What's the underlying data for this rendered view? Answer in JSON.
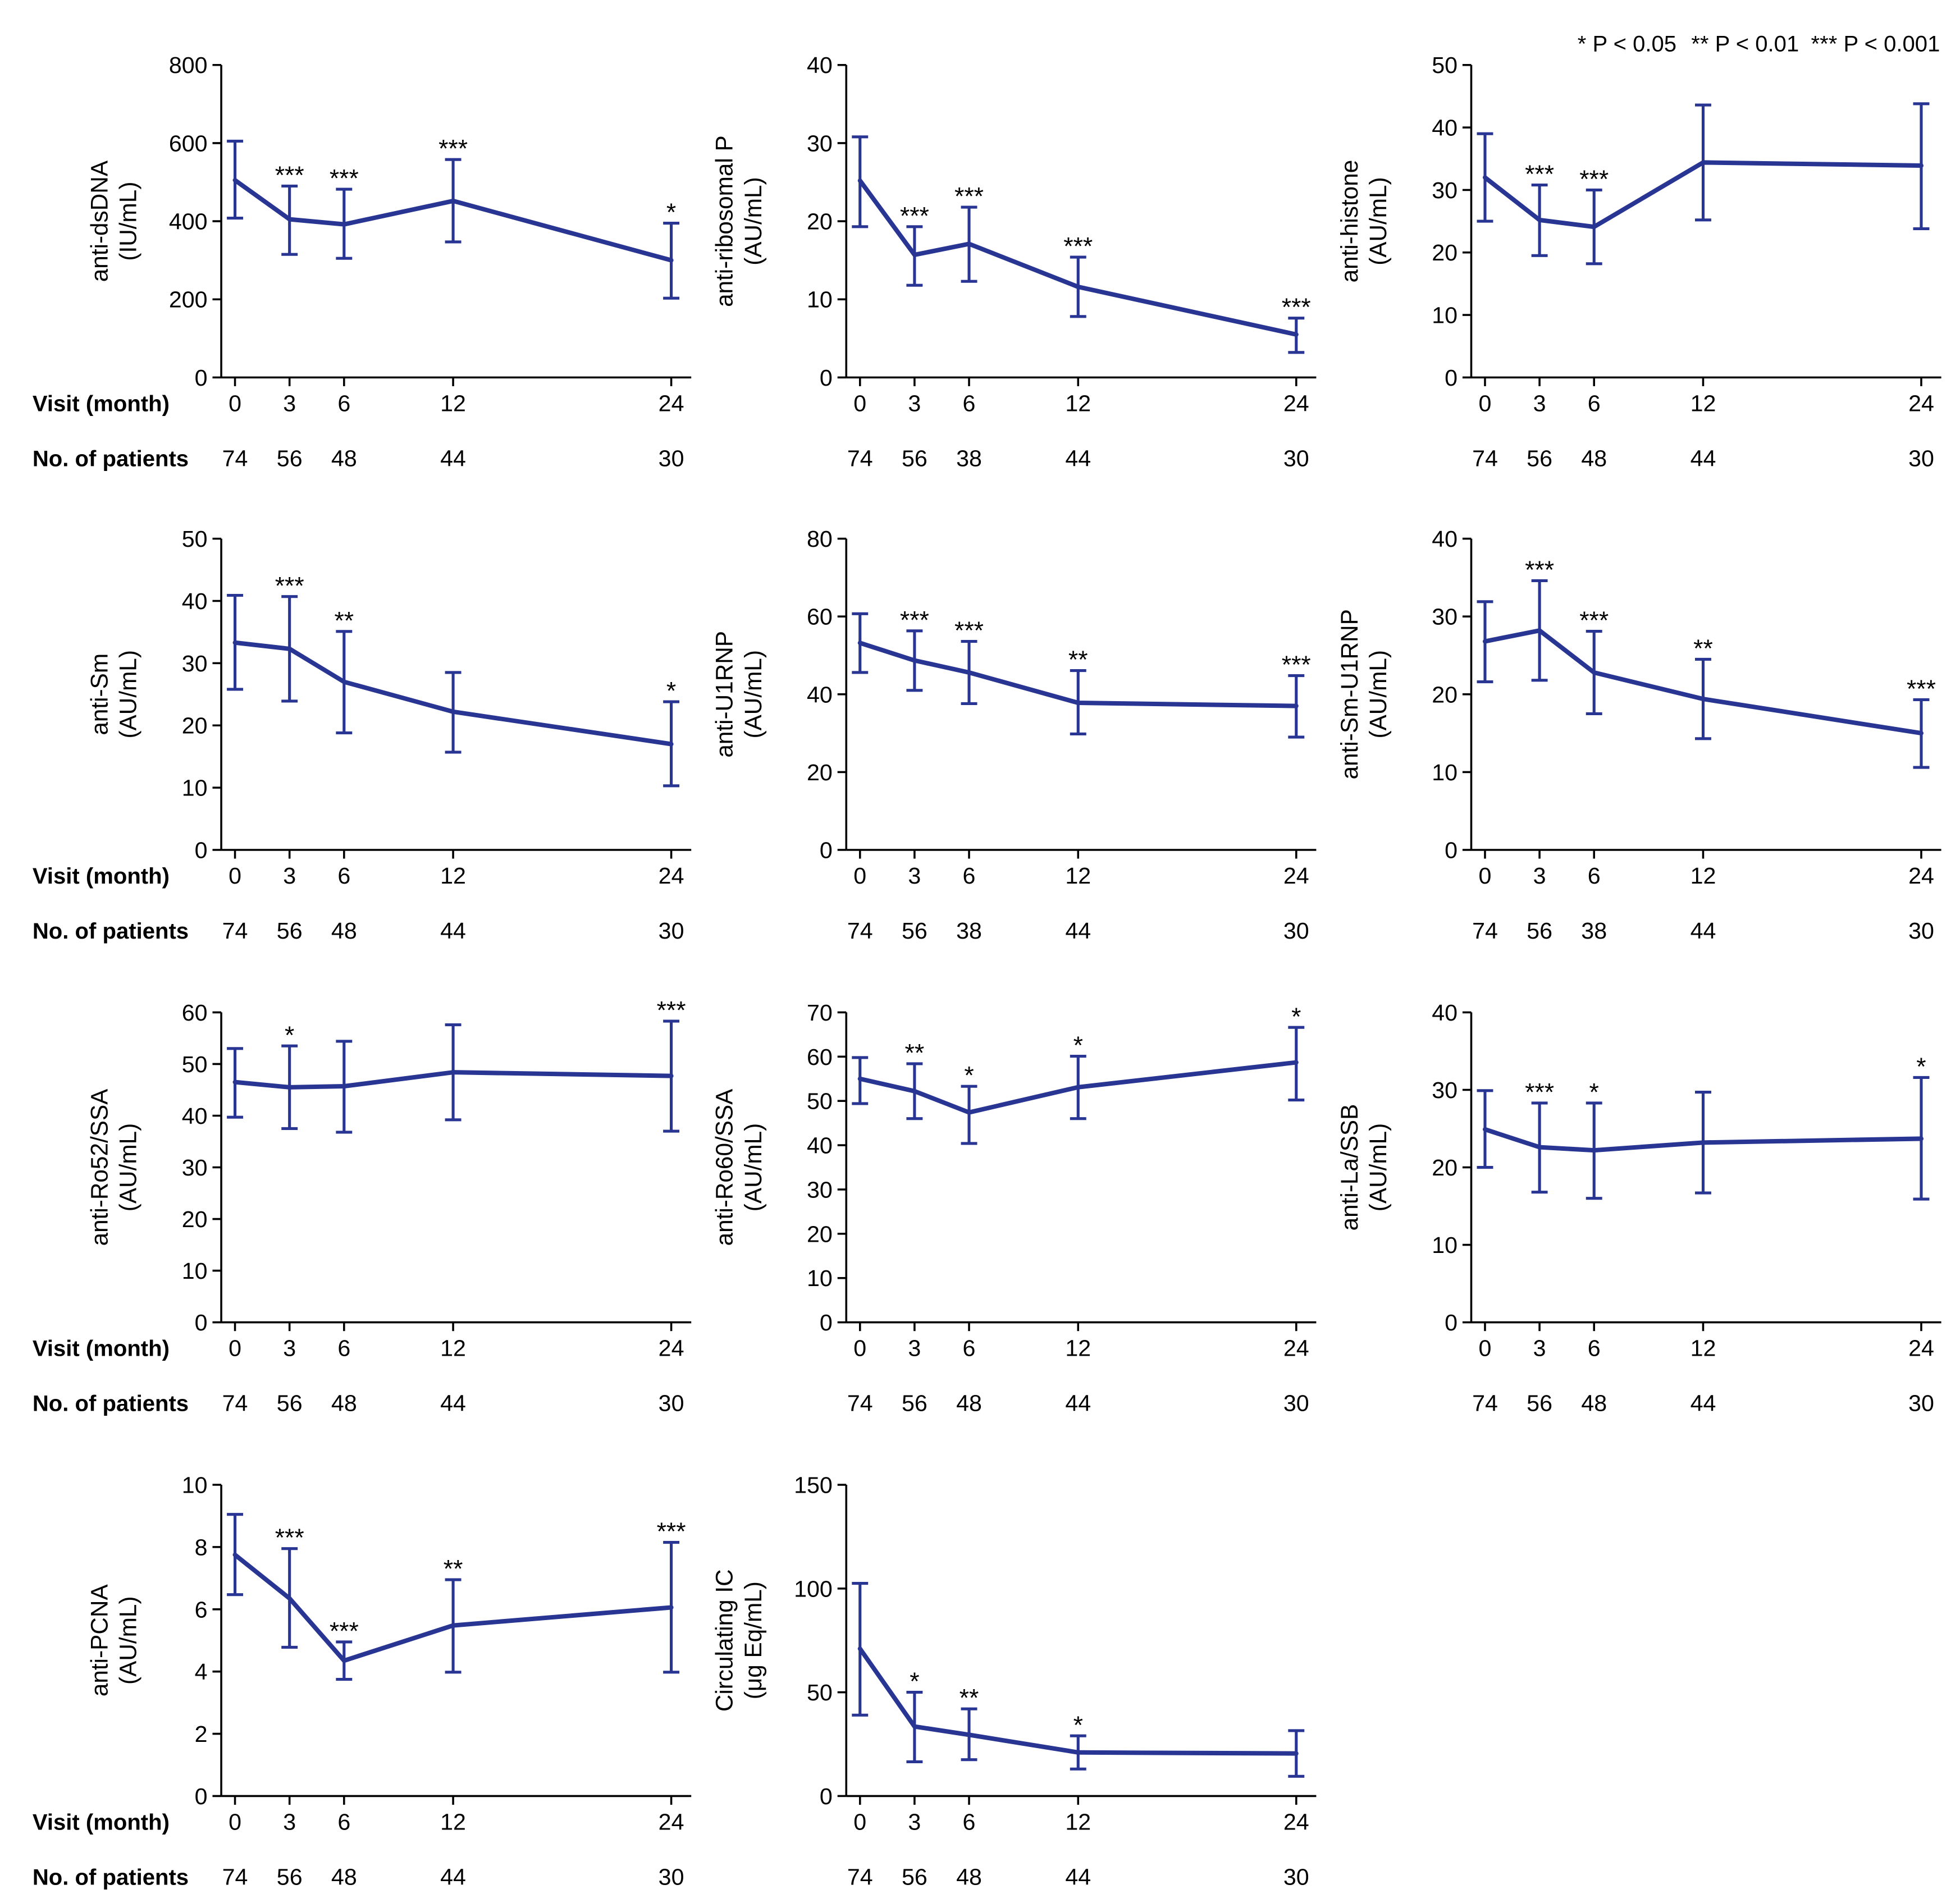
{
  "legend": [
    "* P < 0.05",
    "** P < 0.01",
    "*** P < 0.001"
  ],
  "shared_axes": {
    "xlabel": "Visit (month)",
    "patients_label": "No. of patients"
  },
  "colors": {
    "series": "#283592",
    "axis": "#000000"
  },
  "chart_data": [
    {
      "type": "line",
      "ylabel": "anti-dsDNA",
      "yunit": "(IU/mL)",
      "ylim": [
        0,
        800
      ],
      "yticks": [
        0,
        200,
        400,
        600,
        800
      ],
      "x": [
        0,
        3,
        6,
        12,
        24
      ],
      "patients": [
        74,
        56,
        48,
        44,
        30
      ],
      "series": [
        {
          "values": [
            505,
            405,
            392,
            452,
            300
          ],
          "upper": [
            605,
            490,
            482,
            558,
            395
          ],
          "lower": [
            408,
            315,
            305,
            347,
            203
          ],
          "significance": [
            null,
            "***",
            "***",
            "***",
            "*"
          ]
        }
      ]
    },
    {
      "type": "line",
      "ylabel": "anti-ribosomal P",
      "yunit": "(AU/mL)",
      "ylim": [
        0,
        40
      ],
      "yticks": [
        0,
        10,
        20,
        30,
        40
      ],
      "x": [
        0,
        3,
        6,
        12,
        24
      ],
      "patients": [
        74,
        56,
        38,
        44,
        30
      ],
      "series": [
        {
          "values": [
            25.2,
            15.7,
            17.1,
            11.6,
            5.5
          ],
          "upper": [
            30.8,
            19.3,
            21.8,
            15.4,
            7.6
          ],
          "lower": [
            19.3,
            11.8,
            12.3,
            7.8,
            3.2
          ],
          "significance": [
            null,
            "***",
            "***",
            "***",
            "***"
          ]
        }
      ]
    },
    {
      "type": "line",
      "ylabel": "anti-histone",
      "yunit": "(AU/mL)",
      "ylim": [
        0,
        50
      ],
      "yticks": [
        0,
        10,
        20,
        30,
        40,
        50
      ],
      "x": [
        0,
        3,
        6,
        12,
        24
      ],
      "patients": [
        74,
        56,
        48,
        44,
        30
      ],
      "series": [
        {
          "values": [
            32.0,
            25.2,
            24.1,
            34.4,
            33.9
          ],
          "upper": [
            39.0,
            30.8,
            30.0,
            43.6,
            43.8
          ],
          "lower": [
            25.0,
            19.5,
            18.2,
            25.2,
            23.8
          ],
          "significance": [
            null,
            "***",
            "***",
            null,
            null
          ]
        }
      ]
    },
    {
      "type": "line",
      "ylabel": "anti-Sm",
      "yunit": "(AU/mL)",
      "ylim": [
        0,
        50
      ],
      "yticks": [
        0,
        10,
        20,
        30,
        40,
        50
      ],
      "x": [
        0,
        3,
        6,
        12,
        24
      ],
      "patients": [
        74,
        56,
        48,
        44,
        30
      ],
      "series": [
        {
          "values": [
            33.3,
            32.3,
            27.0,
            22.2,
            17.0
          ],
          "upper": [
            40.9,
            40.7,
            35.1,
            28.5,
            23.8
          ],
          "lower": [
            25.8,
            23.9,
            18.8,
            15.7,
            10.3
          ],
          "significance": [
            null,
            "***",
            "**",
            null,
            "*"
          ]
        }
      ]
    },
    {
      "type": "line",
      "ylabel": "anti-U1RNP",
      "yunit": "(AU/mL)",
      "ylim": [
        0,
        80
      ],
      "yticks": [
        0,
        20,
        40,
        60,
        80
      ],
      "x": [
        0,
        3,
        6,
        12,
        24
      ],
      "patients": [
        74,
        56,
        38,
        44,
        30
      ],
      "series": [
        {
          "values": [
            53.2,
            48.7,
            45.6,
            37.8,
            37.0
          ],
          "upper": [
            60.7,
            56.3,
            53.6,
            46.1,
            44.8
          ],
          "lower": [
            45.6,
            41.0,
            37.6,
            29.8,
            29.0
          ],
          "significance": [
            null,
            "***",
            "***",
            "**",
            "***"
          ]
        }
      ]
    },
    {
      "type": "line",
      "ylabel": "anti-Sm-U1RNP",
      "yunit": "(AU/mL)",
      "ylim": [
        0,
        40
      ],
      "yticks": [
        0,
        10,
        20,
        30,
        40
      ],
      "x": [
        0,
        3,
        6,
        12,
        24
      ],
      "patients": [
        74,
        56,
        38,
        44,
        30
      ],
      "series": [
        {
          "values": [
            26.8,
            28.2,
            22.8,
            19.4,
            15.0
          ],
          "upper": [
            31.9,
            34.6,
            28.1,
            24.5,
            19.3
          ],
          "lower": [
            21.6,
            21.8,
            17.5,
            14.3,
            10.6
          ],
          "significance": [
            null,
            "***",
            "***",
            "**",
            "***"
          ]
        }
      ]
    },
    {
      "type": "line",
      "ylabel": "anti-Ro52/SSA",
      "yunit": "(AU/mL)",
      "ylim": [
        0,
        60
      ],
      "yticks": [
        0,
        10,
        20,
        30,
        40,
        50,
        60
      ],
      "x": [
        0,
        3,
        6,
        12,
        24
      ],
      "patients": [
        74,
        56,
        48,
        44,
        30
      ],
      "series": [
        {
          "values": [
            46.5,
            45.5,
            45.7,
            48.4,
            47.7
          ],
          "upper": [
            53.0,
            53.5,
            54.4,
            57.6,
            58.3
          ],
          "lower": [
            39.7,
            37.5,
            36.8,
            39.2,
            37.0
          ],
          "significance": [
            null,
            "*",
            null,
            null,
            "***"
          ]
        }
      ]
    },
    {
      "type": "line",
      "ylabel": "anti-Ro60/SSA",
      "yunit": "(AU/mL)",
      "ylim": [
        0,
        70
      ],
      "yticks": [
        0,
        10,
        20,
        30,
        40,
        50,
        60,
        70
      ],
      "x": [
        0,
        3,
        6,
        12,
        24
      ],
      "patients": [
        74,
        56,
        48,
        44,
        30
      ],
      "series": [
        {
          "values": [
            55.0,
            52.2,
            47.4,
            53.1,
            58.7
          ],
          "upper": [
            59.8,
            58.4,
            53.3,
            60.1,
            66.6
          ],
          "lower": [
            49.4,
            46.0,
            40.4,
            46.0,
            50.2
          ],
          "significance": [
            null,
            "**",
            "*",
            "*",
            "*"
          ]
        }
      ]
    },
    {
      "type": "line",
      "ylabel": "anti-La/SSB",
      "yunit": "(AU/mL)",
      "ylim": [
        0,
        40
      ],
      "yticks": [
        0,
        10,
        20,
        30,
        40
      ],
      "x": [
        0,
        3,
        6,
        12,
        24
      ],
      "patients": [
        74,
        56,
        48,
        44,
        30
      ],
      "series": [
        {
          "values": [
            24.9,
            22.6,
            22.2,
            23.2,
            23.7
          ],
          "upper": [
            29.9,
            28.3,
            28.3,
            29.7,
            31.6
          ],
          "lower": [
            20.0,
            16.8,
            16.0,
            16.7,
            15.9
          ],
          "significance": [
            null,
            "***",
            "*",
            null,
            "*"
          ]
        }
      ]
    },
    {
      "type": "line",
      "ylabel": "anti-PCNA",
      "yunit": "(AU/mL)",
      "ylim": [
        0,
        10
      ],
      "yticks": [
        0,
        2,
        4,
        6,
        8,
        10
      ],
      "x": [
        0,
        3,
        6,
        12,
        24
      ],
      "patients": [
        74,
        56,
        48,
        44,
        30
      ],
      "series": [
        {
          "values": [
            7.75,
            6.35,
            4.35,
            5.48,
            6.06
          ],
          "upper": [
            9.05,
            7.95,
            4.95,
            6.95,
            8.15
          ],
          "lower": [
            6.47,
            4.78,
            3.75,
            3.98,
            3.98
          ],
          "significance": [
            null,
            "***",
            "***",
            "**",
            "***"
          ]
        }
      ]
    },
    {
      "type": "line",
      "ylabel": "Circulating IC",
      "yunit": "(μg Eq/mL)",
      "ylim": [
        0,
        150
      ],
      "yticks": [
        0,
        50,
        100,
        150
      ],
      "x": [
        0,
        3,
        6,
        12,
        24
      ],
      "patients": [
        74,
        56,
        48,
        44,
        30
      ],
      "series": [
        {
          "values": [
            71.0,
            33.5,
            29.5,
            21.0,
            20.5
          ],
          "upper": [
            102.5,
            50.0,
            42.0,
            29.0,
            31.5
          ],
          "lower": [
            39.0,
            16.5,
            17.5,
            13.0,
            9.5
          ],
          "significance": [
            null,
            "*",
            "**",
            "*",
            null
          ]
        }
      ]
    }
  ]
}
